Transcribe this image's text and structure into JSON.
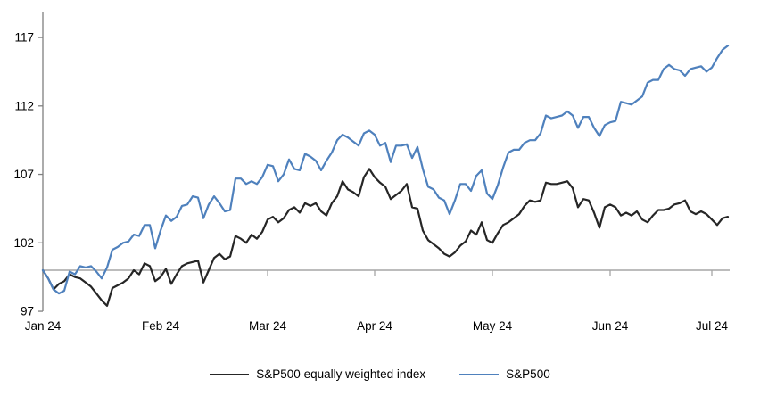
{
  "chart_data": {
    "type": "line",
    "title": "",
    "xlabel": "",
    "ylabel": "",
    "y_ticks": [
      97,
      102,
      107,
      112,
      117
    ],
    "ylim": [
      97,
      118.8
    ],
    "baseline_value": 100,
    "grid": "baseline-only",
    "legend_position": "bottom-center",
    "x_tick_labels": [
      "Jan 24",
      "Feb 24",
      "Mar 24",
      "Apr 24",
      "May 24",
      "Jun 24",
      "Jul 24"
    ],
    "x_tick_indices": [
      0,
      22,
      42,
      62,
      84,
      106,
      125
    ],
    "axis_color": "#808080",
    "baseline_color": "#a6a6a6",
    "series": [
      {
        "name": "S&P500 equally weighted index",
        "color": "#262626",
        "values": [
          100.0,
          99.4,
          98.6,
          99.0,
          99.2,
          99.7,
          99.5,
          99.4,
          99.1,
          98.8,
          98.3,
          97.8,
          97.4,
          98.7,
          98.9,
          99.1,
          99.4,
          100.0,
          99.7,
          100.5,
          100.3,
          99.2,
          99.5,
          100.1,
          99.0,
          99.7,
          100.3,
          100.5,
          100.6,
          100.7,
          99.1,
          100.0,
          100.9,
          101.2,
          100.8,
          101.0,
          102.5,
          102.3,
          102.0,
          102.6,
          102.3,
          102.8,
          103.7,
          103.9,
          103.5,
          103.8,
          104.4,
          104.6,
          104.2,
          104.9,
          104.7,
          104.9,
          104.3,
          104.0,
          104.9,
          105.4,
          106.5,
          105.9,
          105.7,
          105.4,
          106.8,
          107.4,
          106.8,
          106.4,
          106.1,
          105.2,
          105.5,
          105.8,
          106.3,
          104.6,
          104.5,
          102.9,
          102.2,
          101.9,
          101.6,
          101.2,
          101.0,
          101.3,
          101.8,
          102.1,
          102.9,
          102.6,
          103.5,
          102.2,
          102.0,
          102.7,
          103.3,
          103.5,
          103.8,
          104.1,
          104.7,
          105.1,
          105.0,
          105.1,
          106.4,
          106.3,
          106.3,
          106.4,
          106.5,
          106.0,
          104.6,
          105.2,
          105.1,
          104.2,
          103.1,
          104.6,
          104.8,
          104.6,
          104.0,
          104.2,
          104.0,
          104.3,
          103.7,
          103.5,
          104.0,
          104.4,
          104.4,
          104.5,
          104.8,
          104.9,
          105.1,
          104.3,
          104.1,
          104.3,
          104.1,
          103.7,
          103.3,
          103.8,
          103.9
        ]
      },
      {
        "name": "S&P500",
        "color": "#4f81bd",
        "values": [
          100.0,
          99.4,
          98.6,
          98.3,
          98.5,
          99.9,
          99.7,
          100.3,
          100.2,
          100.3,
          99.9,
          99.4,
          100.2,
          101.5,
          101.7,
          102.0,
          102.1,
          102.6,
          102.5,
          103.3,
          103.3,
          101.6,
          102.9,
          104.0,
          103.6,
          103.9,
          104.7,
          104.8,
          105.4,
          105.3,
          103.8,
          104.8,
          105.4,
          104.9,
          104.3,
          104.4,
          106.7,
          106.7,
          106.3,
          106.5,
          106.3,
          106.8,
          107.7,
          107.6,
          106.5,
          107.0,
          108.1,
          107.4,
          107.3,
          108.5,
          108.3,
          108.0,
          107.3,
          108.0,
          108.6,
          109.5,
          109.9,
          109.7,
          109.4,
          109.1,
          110.0,
          110.2,
          109.9,
          109.1,
          109.3,
          107.9,
          109.1,
          109.1,
          109.2,
          108.2,
          109.0,
          107.4,
          106.1,
          105.9,
          105.3,
          105.1,
          104.1,
          105.1,
          106.3,
          106.3,
          105.8,
          106.9,
          107.3,
          105.6,
          105.2,
          106.2,
          107.5,
          108.6,
          108.8,
          108.8,
          109.3,
          109.5,
          109.5,
          110.0,
          111.3,
          111.1,
          111.2,
          111.3,
          111.6,
          111.3,
          110.4,
          111.2,
          111.2,
          110.4,
          109.8,
          110.6,
          110.8,
          110.9,
          112.3,
          112.2,
          112.1,
          112.4,
          112.7,
          113.7,
          113.9,
          113.9,
          114.7,
          115.0,
          114.7,
          114.6,
          114.2,
          114.7,
          114.8,
          114.9,
          114.5,
          114.8,
          115.5,
          116.1,
          116.4
        ]
      }
    ]
  },
  "legend": {
    "items": [
      {
        "label": "S&P500 equally weighted index"
      },
      {
        "label": "S&P500"
      }
    ]
  }
}
